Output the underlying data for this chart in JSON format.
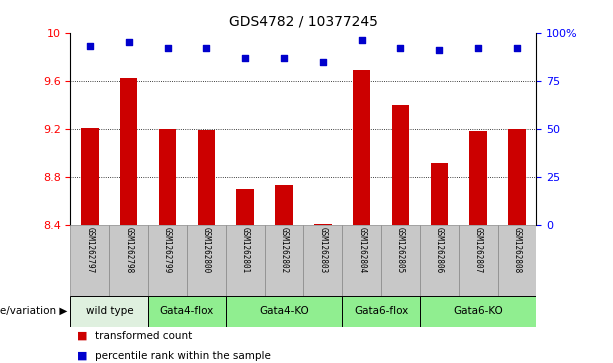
{
  "title": "GDS4782 / 10377245",
  "samples": [
    "GSM1262797",
    "GSM1262798",
    "GSM1262799",
    "GSM1262800",
    "GSM1262801",
    "GSM1262802",
    "GSM1262803",
    "GSM1262804",
    "GSM1262805",
    "GSM1262806",
    "GSM1262807",
    "GSM1262808"
  ],
  "transformed_count": [
    9.21,
    9.62,
    9.2,
    9.19,
    8.7,
    8.73,
    8.41,
    9.69,
    9.4,
    8.92,
    9.18,
    9.2
  ],
  "percentile_rank": [
    93,
    95,
    92,
    92,
    87,
    87,
    85,
    96,
    92,
    91,
    92,
    92
  ],
  "ylim_left": [
    8.4,
    10.0
  ],
  "ylim_right": [
    0,
    100
  ],
  "yticks_left": [
    8.4,
    8.8,
    9.2,
    9.6,
    10.0
  ],
  "yticks_right": [
    0,
    25,
    50,
    75,
    100
  ],
  "ytick_labels_left": [
    "8.4",
    "8.8",
    "9.2",
    "9.6",
    "10"
  ],
  "ytick_labels_right": [
    "0",
    "25",
    "50",
    "75",
    "100%"
  ],
  "grid_lines": [
    8.8,
    9.2,
    9.6
  ],
  "bar_color": "#cc0000",
  "dot_color": "#0000cc",
  "bar_bottom": 8.4,
  "groups": [
    {
      "label": "wild type",
      "start": 0,
      "end": 1,
      "color": "#dff0df"
    },
    {
      "label": "Gata4-flox",
      "start": 2,
      "end": 3,
      "color": "#90ee90"
    },
    {
      "label": "Gata4-KO",
      "start": 4,
      "end": 6,
      "color": "#90ee90"
    },
    {
      "label": "Gata6-flox",
      "start": 7,
      "end": 8,
      "color": "#90ee90"
    },
    {
      "label": "Gata6-KO",
      "start": 9,
      "end": 11,
      "color": "#90ee90"
    }
  ],
  "sample_bg_color": "#c8c8c8",
  "legend_items": [
    {
      "label": "transformed count",
      "color": "#cc0000"
    },
    {
      "label": "percentile rank within the sample",
      "color": "#0000cc"
    }
  ],
  "genotype_label": "genotype/variation"
}
